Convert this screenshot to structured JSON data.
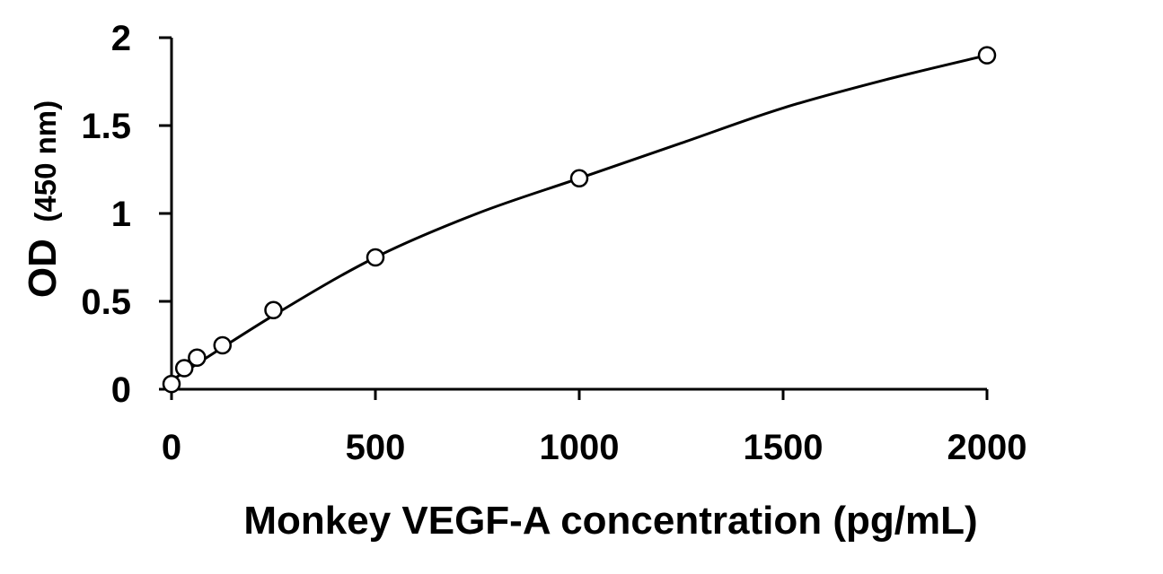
{
  "chart_data": {
    "type": "scatter",
    "xlabel": "Monkey VEGF-A concentration (pg/mL)",
    "ylabel_main": "OD",
    "ylabel_unit": "(450 nm)",
    "xlim": [
      0,
      2000
    ],
    "ylim": [
      0,
      2
    ],
    "x_ticks": [
      0,
      500,
      1000,
      1500,
      2000
    ],
    "y_ticks": [
      0,
      0.5,
      1,
      1.5,
      2
    ],
    "x_tick_labels": [
      "0",
      "500",
      "1000",
      "1500",
      "2000"
    ],
    "y_tick_labels": [
      "0",
      "0.5",
      "1",
      "1.5",
      "2"
    ],
    "grid": false,
    "legend": "none",
    "marker": "open-circle",
    "fit": "smooth curve",
    "series": [
      {
        "x": [
          0,
          31.25,
          62.5,
          125,
          250,
          500,
          1000,
          2000
        ],
        "y": [
          0.03,
          0.12,
          0.18,
          0.25,
          0.45,
          0.75,
          1.2,
          1.9
        ]
      }
    ],
    "fit_curve": {
      "x": [
        0,
        250,
        500,
        750,
        1000,
        1250,
        1500,
        1750,
        2000
      ],
      "y": [
        0.05,
        0.42,
        0.75,
        1.0,
        1.2,
        1.4,
        1.6,
        1.76,
        1.9
      ]
    },
    "colors": {
      "line": "#000000",
      "marker_fill": "#ffffff",
      "marker_stroke": "#000000"
    }
  }
}
